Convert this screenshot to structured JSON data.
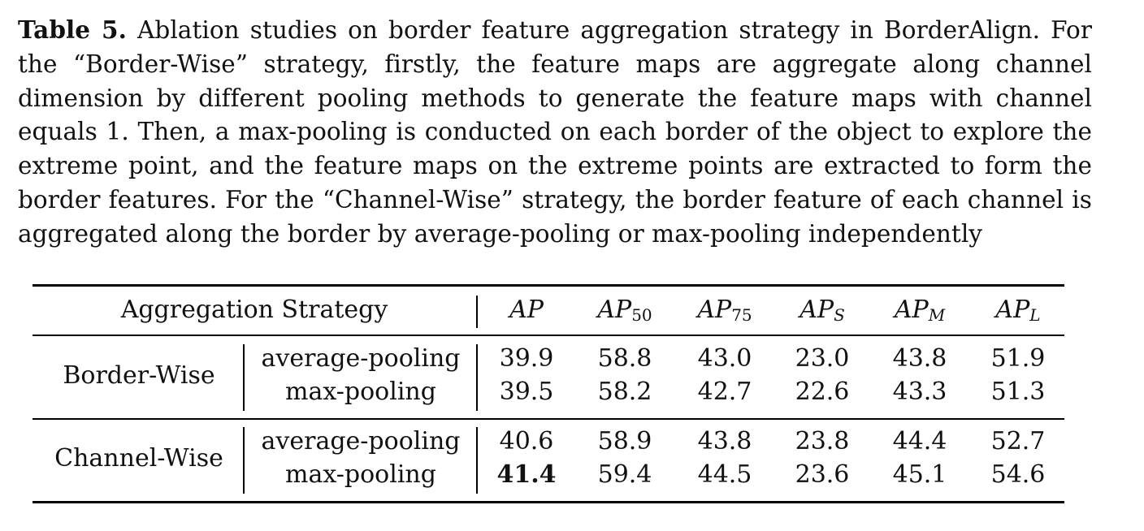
{
  "caption": {
    "label": "Table 5.",
    "text": "Ablation studies on border feature aggregation strategy in BorderAlign. For the “Border-Wise” strategy, firstly, the feature maps are aggregate along channel dimension by different pooling methods to generate the feature maps with channel equals 1. Then, a max-pooling is conducted on each border of the object to explore the extreme point, and the feature maps on the extreme points are extracted to form the border features. For the “Channel-Wise” strategy, the border feature of each channel is aggregated along the border by average-pooling or max-pooling independently"
  },
  "table": {
    "header": {
      "strategy": "Aggregation Strategy",
      "metrics": [
        {
          "main": "AP",
          "sub": ""
        },
        {
          "main": "AP",
          "sub": "50"
        },
        {
          "main": "AP",
          "sub": "75"
        },
        {
          "main": "AP",
          "sub": "S"
        },
        {
          "main": "AP",
          "sub": "M"
        },
        {
          "main": "AP",
          "sub": "L"
        }
      ]
    },
    "groups": [
      {
        "name": "Border-Wise",
        "rows": [
          {
            "method": "average-pooling",
            "values": [
              "39.9",
              "58.8",
              "43.0",
              "23.0",
              "43.8",
              "51.9"
            ]
          },
          {
            "method": "max-pooling",
            "values": [
              "39.5",
              "58.2",
              "42.7",
              "22.6",
              "43.3",
              "51.3"
            ]
          }
        ]
      },
      {
        "name": "Channel-Wise",
        "rows": [
          {
            "method": "average-pooling",
            "values": [
              "40.6",
              "58.9",
              "43.8",
              "23.8",
              "44.4",
              "52.7"
            ]
          },
          {
            "method": "max-pooling",
            "values": [
              "41.4",
              "59.4",
              "44.5",
              "23.6",
              "45.1",
              "54.6"
            ],
            "bold": [
              0
            ]
          }
        ]
      }
    ]
  }
}
